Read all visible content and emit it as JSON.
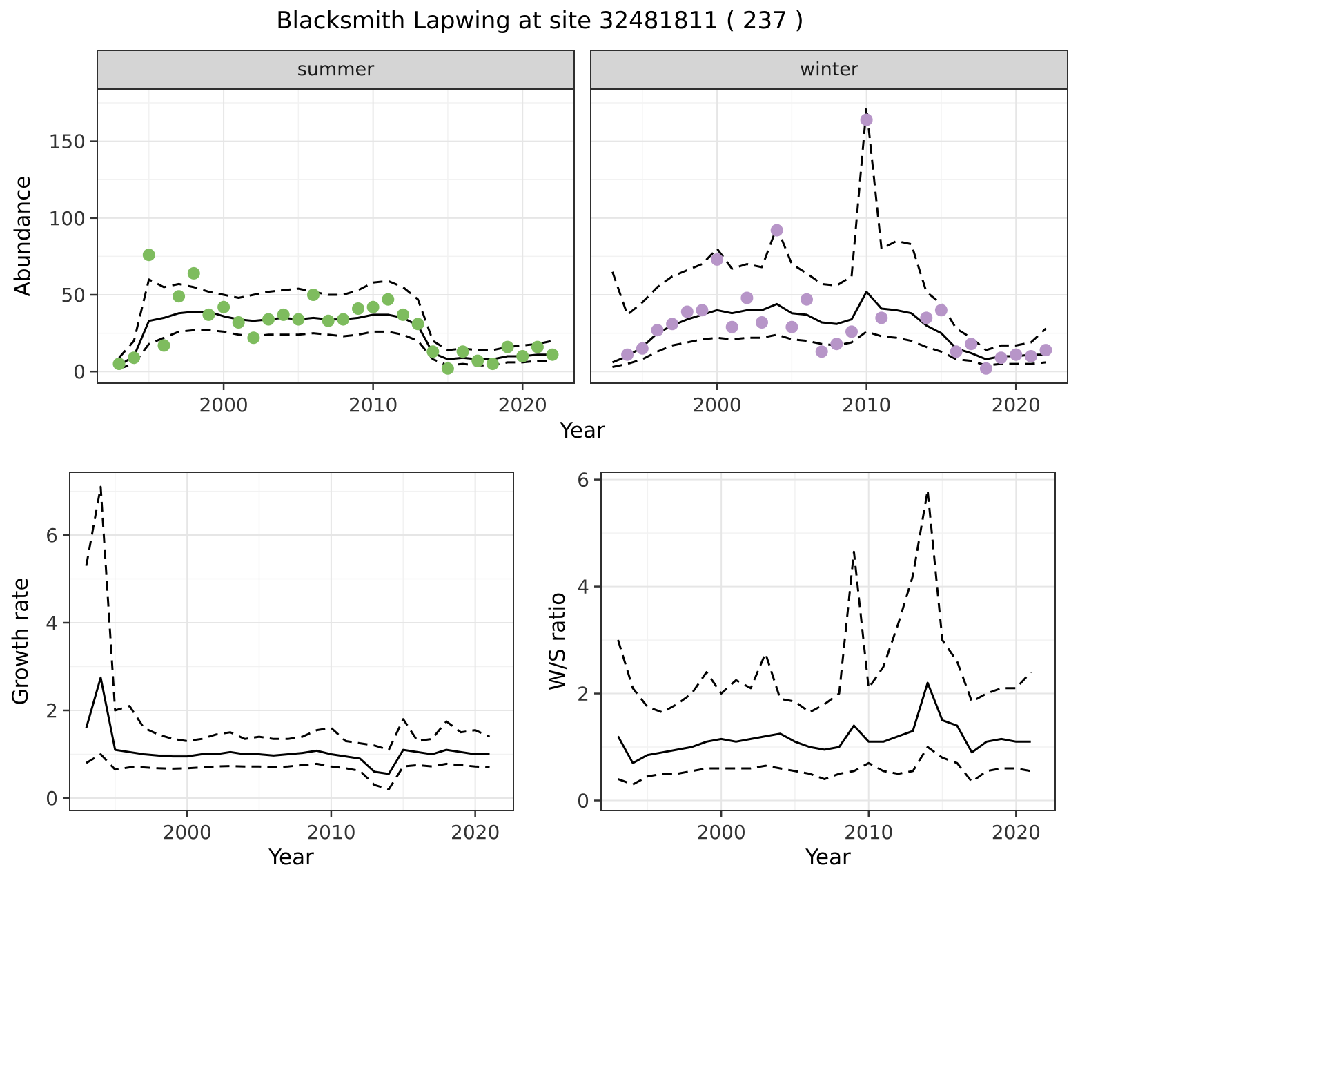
{
  "title": "Blacksmith Lapwing at site 32481811 ( 237 )",
  "labels": {
    "year": "Year",
    "abundance": "Abundance",
    "growth_rate": "Growth rate",
    "ws_ratio": "W/S ratio"
  },
  "facets": [
    "summer",
    "winter"
  ],
  "colors": {
    "summer_points": "#7ebc5e",
    "winter_points": "#b795c8",
    "line": "#000000",
    "strip_bg": "#d5d5d5"
  },
  "chart_data": [
    {
      "id": "abundance-summer",
      "type": "line",
      "facet": "summer",
      "xlabel": "Year",
      "ylabel": "Abundance",
      "xlim": [
        1991.5,
        2023.5
      ],
      "ylim": [
        -8,
        184
      ],
      "x_ticks": [
        2000,
        2010,
        2020
      ],
      "y_ticks": [
        0,
        50,
        100,
        150
      ],
      "show_y_axis": true,
      "grid": true,
      "x": [
        1993,
        1994,
        1995,
        1996,
        1997,
        1998,
        1999,
        2000,
        2001,
        2002,
        2003,
        2004,
        2005,
        2006,
        2007,
        2008,
        2009,
        2010,
        2011,
        2012,
        2013,
        2014,
        2015,
        2016,
        2017,
        2018,
        2019,
        2020,
        2021,
        2022
      ],
      "series": [
        {
          "name": "upper95",
          "style": "dashed",
          "color": "#000000",
          "values": [
            9,
            20,
            60,
            55,
            57,
            55,
            52,
            50,
            48,
            50,
            52,
            53,
            54,
            52,
            50,
            50,
            53,
            58,
            59,
            55,
            47,
            20,
            14,
            15,
            14,
            14,
            16,
            17,
            18,
            20
          ]
        },
        {
          "name": "lower95",
          "style": "dashed",
          "color": "#000000",
          "values": [
            2,
            5,
            18,
            22,
            26,
            27,
            27,
            26,
            24,
            23,
            24,
            24,
            24,
            25,
            24,
            23,
            24,
            26,
            26,
            24,
            20,
            8,
            4,
            5,
            4,
            4,
            6,
            6,
            7,
            7
          ]
        },
        {
          "name": "fit",
          "style": "solid",
          "color": "#000000",
          "values": [
            4,
            10,
            33,
            35,
            38,
            39,
            39,
            36,
            34,
            33,
            34,
            35,
            34,
            35,
            34,
            34,
            35,
            37,
            37,
            35,
            30,
            12,
            8,
            9,
            8,
            8,
            10,
            10,
            11,
            11
          ]
        },
        {
          "name": "observed",
          "style": "points",
          "color": "#7ebc5e",
          "values": [
            5,
            9,
            76,
            17,
            49,
            64,
            37,
            42,
            32,
            22,
            34,
            37,
            34,
            50,
            33,
            34,
            41,
            42,
            47,
            37,
            31,
            13,
            2,
            13,
            7,
            5,
            16,
            10,
            16,
            11
          ]
        }
      ]
    },
    {
      "id": "abundance-winter",
      "type": "line",
      "facet": "winter",
      "xlabel": "Year",
      "ylabel": "Abundance",
      "xlim": [
        1991.5,
        2023.5
      ],
      "ylim": [
        -8,
        184
      ],
      "x_ticks": [
        2000,
        2010,
        2020
      ],
      "y_ticks": [
        0,
        50,
        100,
        150
      ],
      "show_y_axis": false,
      "grid": true,
      "x": [
        1993,
        1994,
        1995,
        1996,
        1997,
        1998,
        1999,
        2000,
        2001,
        2002,
        2003,
        2004,
        2005,
        2006,
        2007,
        2008,
        2009,
        2010,
        2011,
        2012,
        2013,
        2014,
        2015,
        2016,
        2017,
        2018,
        2019,
        2020,
        2021,
        2022
      ],
      "series": [
        {
          "name": "upper95",
          "style": "dashed",
          "color": "#000000",
          "values": [
            65,
            37,
            45,
            55,
            62,
            66,
            70,
            80,
            67,
            70,
            68,
            94,
            70,
            64,
            57,
            56,
            62,
            172,
            80,
            85,
            83,
            52,
            44,
            28,
            22,
            14,
            17,
            17,
            19,
            28
          ]
        },
        {
          "name": "lower95",
          "style": "dashed",
          "color": "#000000",
          "values": [
            3,
            5,
            8,
            13,
            17,
            19,
            21,
            22,
            21,
            22,
            22,
            24,
            21,
            20,
            18,
            17,
            19,
            26,
            23,
            22,
            20,
            16,
            13,
            8,
            7,
            4,
            5,
            5,
            5,
            6
          ]
        },
        {
          "name": "fit",
          "style": "solid",
          "color": "#000000",
          "values": [
            6,
            10,
            16,
            25,
            30,
            34,
            37,
            40,
            38,
            40,
            40,
            44,
            38,
            37,
            32,
            31,
            34,
            52,
            41,
            40,
            38,
            30,
            25,
            15,
            12,
            8,
            10,
            10,
            11,
            11
          ]
        },
        {
          "name": "observed",
          "style": "points",
          "color": "#b795c8",
          "values": [
            null,
            11,
            15,
            27,
            31,
            39,
            40,
            73,
            29,
            48,
            32,
            92,
            29,
            47,
            13,
            18,
            26,
            164,
            35,
            null,
            null,
            35,
            40,
            13,
            18,
            2,
            9,
            11,
            10,
            14
          ]
        }
      ]
    },
    {
      "id": "growth-rate",
      "type": "line",
      "xlabel": "Year",
      "ylabel": "Growth rate",
      "xlim": [
        1991.8,
        2022.7
      ],
      "ylim": [
        -0.3,
        7.45
      ],
      "x_ticks": [
        2000,
        2010,
        2020
      ],
      "y_ticks": [
        0,
        2,
        4,
        6
      ],
      "show_y_axis": true,
      "grid": true,
      "x": [
        1993,
        1994,
        1995,
        1996,
        1997,
        1998,
        1999,
        2000,
        2001,
        2002,
        2003,
        2004,
        2005,
        2006,
        2007,
        2008,
        2009,
        2010,
        2011,
        2012,
        2013,
        2014,
        2015,
        2016,
        2017,
        2018,
        2019,
        2020,
        2021
      ],
      "series": [
        {
          "name": "upper95",
          "style": "dashed",
          "color": "#000000",
          "values": [
            5.3,
            7.1,
            2.0,
            2.1,
            1.6,
            1.45,
            1.35,
            1.3,
            1.35,
            1.45,
            1.5,
            1.35,
            1.4,
            1.35,
            1.35,
            1.4,
            1.55,
            1.6,
            1.3,
            1.25,
            1.2,
            1.1,
            1.8,
            1.3,
            1.35,
            1.75,
            1.5,
            1.55,
            1.4
          ]
        },
        {
          "name": "lower95",
          "style": "dashed",
          "color": "#000000",
          "values": [
            0.8,
            1.0,
            0.65,
            0.7,
            0.7,
            0.68,
            0.67,
            0.68,
            0.7,
            0.72,
            0.73,
            0.72,
            0.72,
            0.7,
            0.72,
            0.75,
            0.78,
            0.72,
            0.68,
            0.62,
            0.3,
            0.2,
            0.72,
            0.75,
            0.72,
            0.78,
            0.75,
            0.72,
            0.7
          ]
        },
        {
          "name": "fit",
          "style": "solid",
          "color": "#000000",
          "values": [
            1.6,
            2.75,
            1.1,
            1.05,
            1.0,
            0.97,
            0.95,
            0.95,
            1.0,
            1.0,
            1.05,
            1.0,
            1.0,
            0.97,
            1.0,
            1.03,
            1.08,
            1.0,
            0.95,
            0.9,
            0.6,
            0.55,
            1.1,
            1.05,
            1.0,
            1.1,
            1.05,
            1.0,
            1.0
          ]
        }
      ]
    },
    {
      "id": "ws-ratio",
      "type": "line",
      "xlabel": "Year",
      "ylabel": "W/S ratio",
      "xlim": [
        1991.8,
        2022.7
      ],
      "ylim": [
        -0.2,
        6.15
      ],
      "x_ticks": [
        2000,
        2010,
        2020
      ],
      "y_ticks": [
        0,
        2,
        4,
        6
      ],
      "show_y_axis": true,
      "grid": true,
      "x": [
        1993,
        1994,
        1995,
        1996,
        1997,
        1998,
        1999,
        2000,
        2001,
        2002,
        2003,
        2004,
        2005,
        2006,
        2007,
        2008,
        2009,
        2010,
        2011,
        2012,
        2013,
        2014,
        2015,
        2016,
        2017,
        2018,
        2019,
        2020,
        2021
      ],
      "series": [
        {
          "name": "upper95",
          "style": "dashed",
          "color": "#000000",
          "values": [
            3.0,
            2.1,
            1.75,
            1.65,
            1.8,
            2.0,
            2.4,
            2.0,
            2.25,
            2.1,
            2.75,
            1.9,
            1.85,
            1.65,
            1.8,
            2.0,
            4.65,
            2.1,
            2.5,
            3.3,
            4.2,
            5.8,
            3.0,
            2.6,
            1.85,
            2.0,
            2.1,
            2.1,
            2.4
          ]
        },
        {
          "name": "lower95",
          "style": "dashed",
          "color": "#000000",
          "values": [
            0.4,
            0.3,
            0.45,
            0.5,
            0.5,
            0.55,
            0.6,
            0.6,
            0.6,
            0.6,
            0.65,
            0.6,
            0.55,
            0.5,
            0.4,
            0.5,
            0.55,
            0.7,
            0.55,
            0.5,
            0.55,
            1.0,
            0.8,
            0.7,
            0.35,
            0.55,
            0.6,
            0.6,
            0.55
          ]
        },
        {
          "name": "fit",
          "style": "solid",
          "color": "#000000",
          "values": [
            1.2,
            0.7,
            0.85,
            0.9,
            0.95,
            1.0,
            1.1,
            1.15,
            1.1,
            1.15,
            1.2,
            1.25,
            1.1,
            1.0,
            0.95,
            1.0,
            1.4,
            1.1,
            1.1,
            1.2,
            1.3,
            2.2,
            1.5,
            1.4,
            0.9,
            1.1,
            1.15,
            1.1,
            1.1
          ]
        }
      ]
    }
  ]
}
